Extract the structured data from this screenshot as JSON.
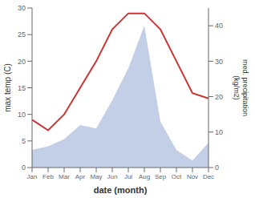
{
  "chart_data": {
    "type": "line",
    "categories": [
      "Jan",
      "Feb",
      "Mar",
      "Apr",
      "May",
      "Jun",
      "Jul",
      "Aug",
      "Sep",
      "Oct",
      "Nov",
      "Dec"
    ],
    "series": [
      {
        "type": "area",
        "axis": "y2",
        "color": "#aabbdd",
        "values": [
          5,
          6,
          8,
          12,
          11,
          19,
          28,
          40,
          13,
          5,
          2,
          7
        ]
      },
      {
        "type": "line",
        "color": "#cc3333",
        "values": [
          9,
          7,
          10,
          15,
          20,
          26,
          29,
          29,
          26,
          20,
          14,
          13
        ]
      }
    ],
    "xlabel": "date (month)",
    "ylabel": "max temp (C)",
    "y2label": "med. precipitation\n(kg/m2)",
    "ylim": [
      0,
      30
    ],
    "yticks": [
      0,
      5,
      10,
      15,
      20,
      25,
      30
    ],
    "y2lim": [
      0,
      45
    ],
    "y2ticks": [
      0,
      10,
      20,
      30,
      40
    ],
    "grid": false
  }
}
